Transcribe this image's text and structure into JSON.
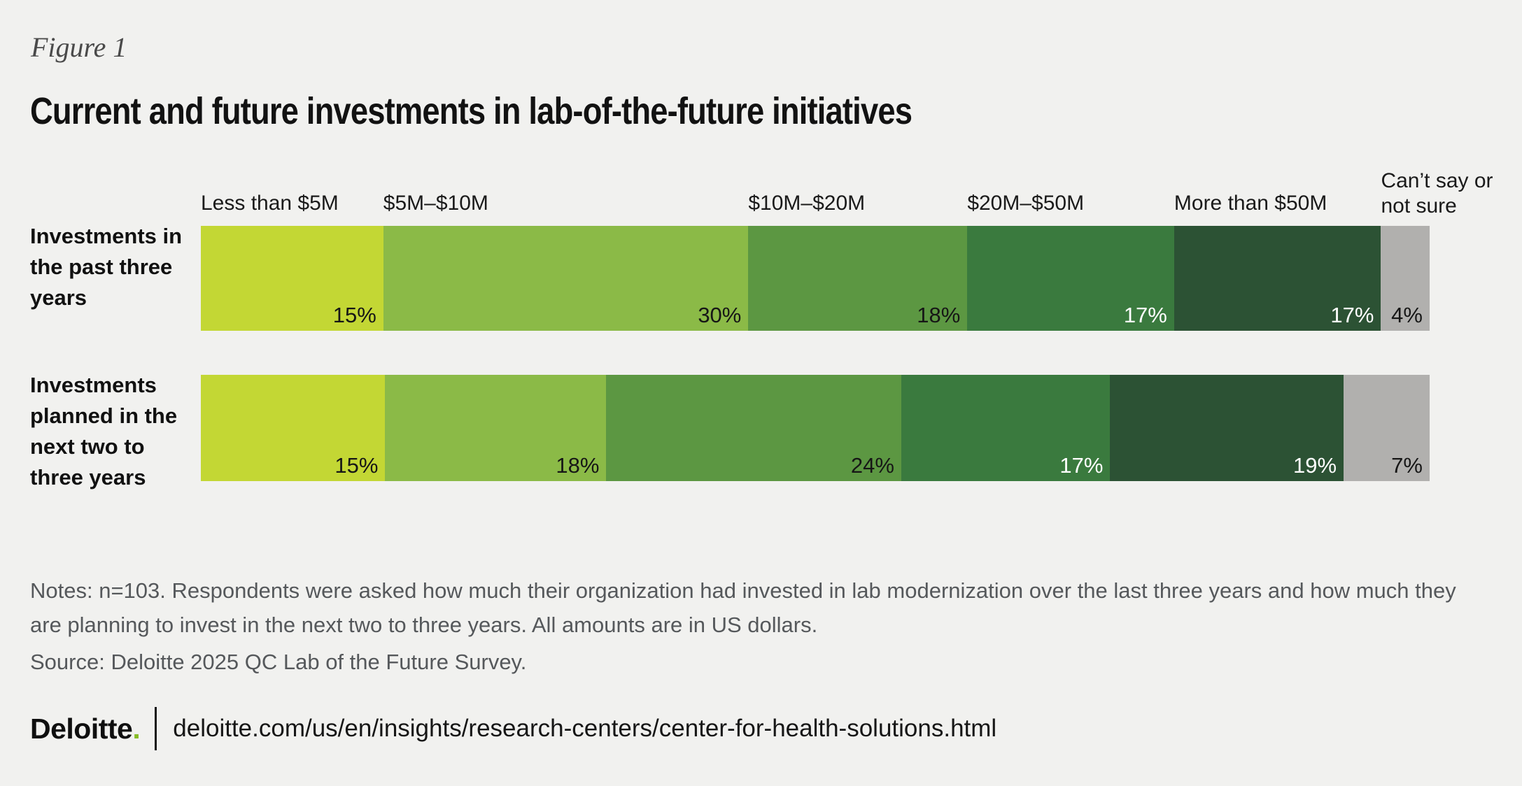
{
  "figure_label": "Figure 1",
  "title": "Current and future investments in lab-of-the-future initiatives",
  "chart_data": {
    "type": "bar",
    "orientation": "horizontal-stacked",
    "value_unit": "%",
    "grid": false,
    "legend_position": "top-inline-category-labels",
    "categories": [
      "Less than $5M",
      "$5M–$10M",
      "$10M–$20M",
      "$20M–$50M",
      "More than $50M",
      "Can’t say or not sure"
    ],
    "series": [
      {
        "name": "Investments in the past three years",
        "values": [
          15,
          30,
          18,
          17,
          17,
          4
        ]
      },
      {
        "name": "Investments planned in the next two to three years",
        "values": [
          15,
          18,
          24,
          17,
          19,
          7
        ]
      }
    ],
    "colors": [
      "#c3d734",
      "#8bba47",
      "#5c9742",
      "#3a7a3e",
      "#2c5234",
      "#b1b0ae"
    ],
    "value_label_colors": [
      "#161616",
      "#161616",
      "#161616",
      "#ffffff",
      "#ffffff",
      "#161616"
    ]
  },
  "notes": "Notes: n=103. Respondents were asked how much their organization had invested in lab modernization over the last three years and how much they are planning to invest in the next two to three years. All amounts are in US dollars.",
  "source": "Source: Deloitte 2025 QC Lab of the Future Survey.",
  "footer": {
    "brand": "Deloitte",
    "brand_dot": ".",
    "url": "deloitte.com/us/en/insights/research-centers/center-for-health-solutions.html",
    "accent_color": "#86bc25"
  }
}
